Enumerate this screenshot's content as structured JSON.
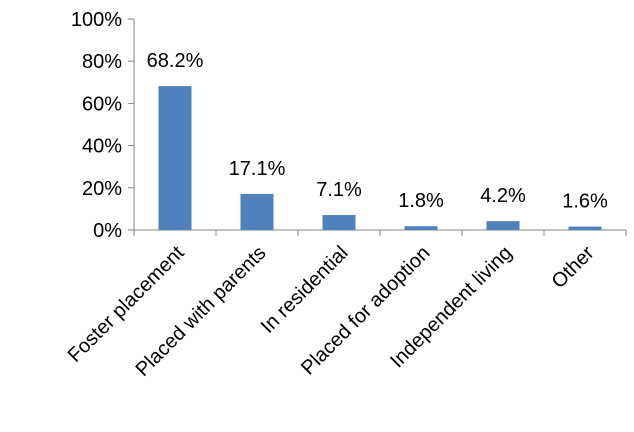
{
  "chart_data": {
    "type": "bar",
    "title": "",
    "xlabel": "",
    "ylabel": "",
    "categories": [
      "Foster placement",
      "Placed with parents",
      "In residential",
      "Placed for adoption",
      "Independent living",
      "Other"
    ],
    "values": [
      68.2,
      17.1,
      7.1,
      1.8,
      4.2,
      1.6
    ],
    "data_labels": [
      "68.2%",
      "17.1%",
      "7.1%",
      "1.8%",
      "4.2%",
      "1.6%"
    ],
    "ylim": [
      0,
      100
    ],
    "y_ticks": [
      0,
      20,
      40,
      60,
      80,
      100
    ],
    "y_tick_labels": [
      "0%",
      "20%",
      "40%",
      "60%",
      "80%",
      "100%"
    ],
    "bar_color": "#4F81BD",
    "axis_color": "#868686",
    "grid": false,
    "legend": "none"
  }
}
